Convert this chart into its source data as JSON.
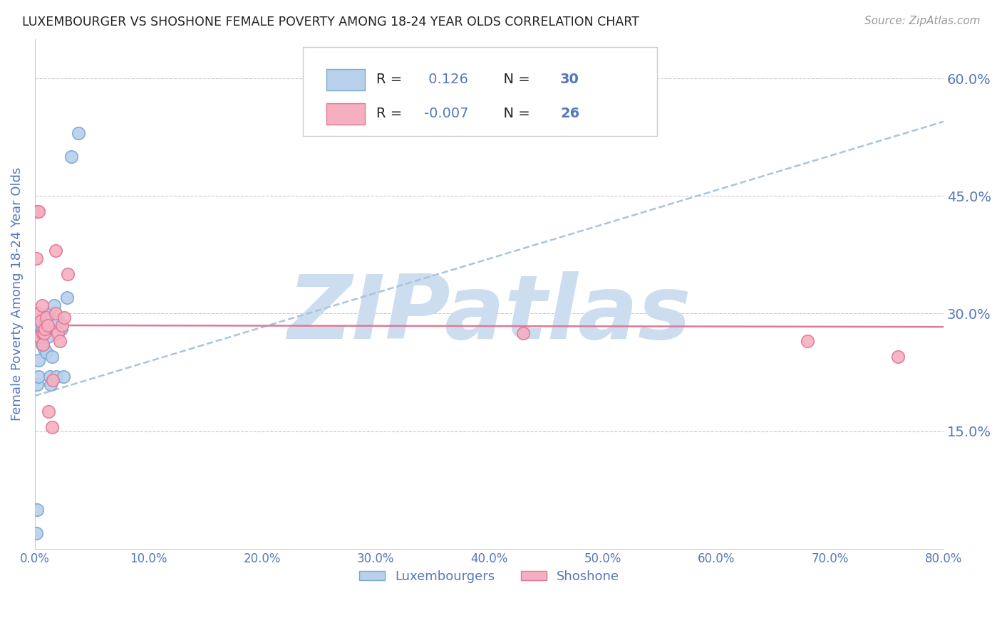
{
  "title": "LUXEMBOURGER VS SHOSHONE FEMALE POVERTY AMONG 18-24 YEAR OLDS CORRELATION CHART",
  "source": "Source: ZipAtlas.com",
  "ylabel": "Female Poverty Among 18-24 Year Olds",
  "xlim": [
    0.0,
    0.8
  ],
  "ylim": [
    0.0,
    0.65
  ],
  "yticks": [
    0.15,
    0.3,
    0.45,
    0.6
  ],
  "xticks": [
    0.0,
    0.1,
    0.2,
    0.3,
    0.4,
    0.5,
    0.6,
    0.7,
    0.8
  ],
  "blue_R": 0.126,
  "blue_N": 30,
  "pink_R": -0.007,
  "pink_N": 26,
  "blue_color": "#b8d0ea",
  "pink_color": "#f5afc0",
  "blue_edge": "#7aa8d4",
  "pink_edge": "#e07898",
  "trend_blue_color": "#aac4e0",
  "trend_pink_color": "#e07898",
  "watermark": "ZIPatlas",
  "watermark_color": "#ccddf0",
  "axis_color": "#5577bb",
  "grid_color": "#cccccc",
  "blue_x": [
    0.001,
    0.002,
    0.002,
    0.003,
    0.003,
    0.004,
    0.004,
    0.005,
    0.005,
    0.006,
    0.006,
    0.007,
    0.007,
    0.008,
    0.008,
    0.009,
    0.01,
    0.011,
    0.012,
    0.013,
    0.014,
    0.015,
    0.017,
    0.019,
    0.021,
    0.023,
    0.025,
    0.028,
    0.032,
    0.038
  ],
  "blue_y": [
    0.02,
    0.05,
    0.21,
    0.22,
    0.24,
    0.27,
    0.285,
    0.29,
    0.27,
    0.28,
    0.26,
    0.27,
    0.28,
    0.255,
    0.295,
    0.28,
    0.25,
    0.27,
    0.3,
    0.22,
    0.21,
    0.245,
    0.31,
    0.22,
    0.29,
    0.28,
    0.22,
    0.32,
    0.5,
    0.53
  ],
  "pink_x": [
    0.001,
    0.002,
    0.003,
    0.003,
    0.004,
    0.005,
    0.006,
    0.007,
    0.007,
    0.008,
    0.009,
    0.01,
    0.011,
    0.012,
    0.015,
    0.016,
    0.018,
    0.02,
    0.022,
    0.024,
    0.026,
    0.029,
    0.018,
    0.43,
    0.68,
    0.76
  ],
  "pink_y": [
    0.37,
    0.43,
    0.43,
    0.3,
    0.27,
    0.29,
    0.31,
    0.275,
    0.26,
    0.275,
    0.28,
    0.295,
    0.285,
    0.175,
    0.155,
    0.215,
    0.3,
    0.275,
    0.265,
    0.285,
    0.295,
    0.35,
    0.38,
    0.275,
    0.265,
    0.245
  ],
  "blue_trend_x0": 0.0,
  "blue_trend_y0": 0.195,
  "blue_trend_x1": 0.8,
  "blue_trend_y1": 0.545,
  "pink_trend_x0": 0.0,
  "pink_trend_y0": 0.285,
  "pink_trend_x1": 0.8,
  "pink_trend_y1": 0.283
}
